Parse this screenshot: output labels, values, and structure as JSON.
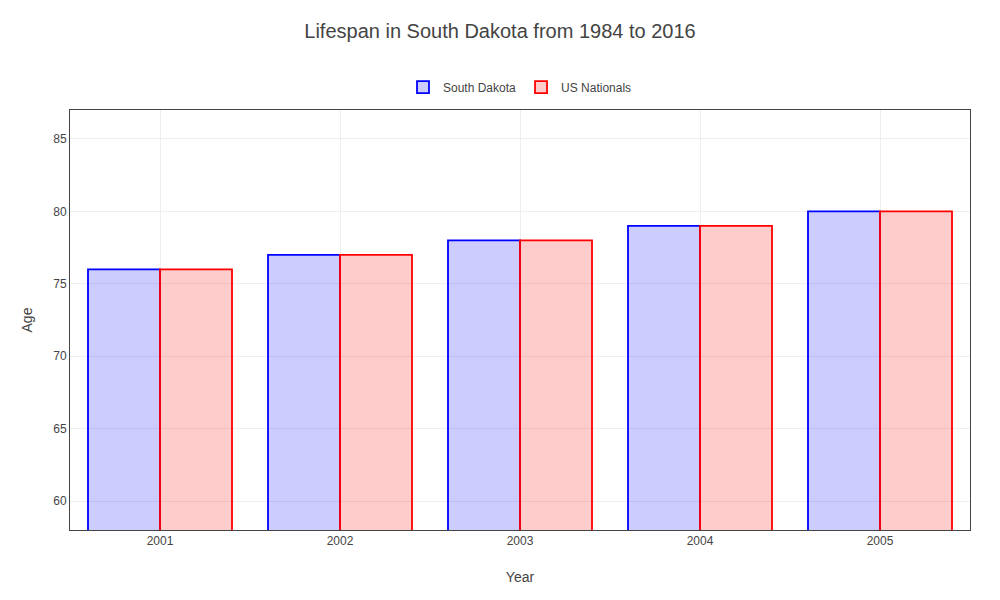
{
  "chart_data": {
    "type": "bar",
    "title": "Lifespan in South Dakota from 1984 to 2016",
    "xlabel": "Year",
    "ylabel": "Age",
    "categories": [
      "2001",
      "2002",
      "2003",
      "2004",
      "2005"
    ],
    "series": [
      {
        "name": "South Dakota",
        "color": "#0000ff",
        "values": [
          76,
          77,
          78,
          79,
          80
        ]
      },
      {
        "name": "US Nationals",
        "color": "#ff0000",
        "values": [
          76,
          77,
          78,
          79,
          80
        ]
      }
    ],
    "ylim": [
      58,
      87
    ],
    "yticks": [
      60,
      65,
      70,
      75,
      80,
      85
    ],
    "grid": true,
    "legend": "top"
  }
}
